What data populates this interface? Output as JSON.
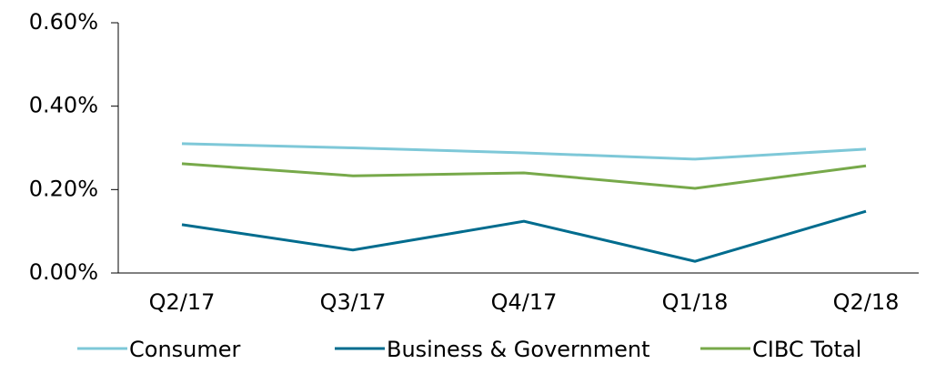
{
  "chart_data": {
    "type": "line",
    "categories": [
      "Q2/17",
      "Q3/17",
      "Q4/17",
      "Q1/18",
      "Q2/18"
    ],
    "series": [
      {
        "name": "Consumer",
        "color": "#7ec8d8",
        "values": [
          0.31,
          0.3,
          0.288,
          0.273,
          0.297
        ]
      },
      {
        "name": "Business & Government",
        "color": "#006c8e",
        "values": [
          0.116,
          0.055,
          0.124,
          0.028,
          0.148
        ]
      },
      {
        "name": "CIBC Total",
        "color": "#77a94a",
        "values": [
          0.262,
          0.233,
          0.24,
          0.203,
          0.257
        ]
      }
    ],
    "ylim": [
      0,
      0.6
    ],
    "yticks": [
      {
        "value": 0,
        "label": "0.00%"
      },
      {
        "value": 0.2,
        "label": "0.20%"
      },
      {
        "value": 0.4,
        "label": "0.40%"
      },
      {
        "value": 0.6,
        "label": "0.60%"
      }
    ],
    "legend": "bottom"
  }
}
